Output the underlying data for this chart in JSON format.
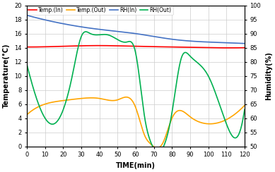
{
  "temp_in_x": [
    0,
    20,
    40,
    60,
    80,
    100,
    120
  ],
  "temp_in_y": [
    14.1,
    14.2,
    14.3,
    14.2,
    14.1,
    14.0,
    14.0
  ],
  "temp_out_x": [
    0,
    10,
    20,
    30,
    40,
    50,
    60,
    65,
    68,
    75,
    80,
    90,
    100,
    110,
    120
  ],
  "temp_out_y": [
    4.5,
    6.0,
    6.5,
    6.8,
    6.8,
    6.6,
    5.5,
    1.5,
    0.4,
    0.5,
    4.0,
    4.2,
    3.2,
    3.8,
    5.8
  ],
  "rh_in_x": [
    0,
    20,
    40,
    60,
    80,
    100,
    120
  ],
  "rh_in_y": [
    96.5,
    93.5,
    91.5,
    90.0,
    88.0,
    87.0,
    86.5
  ],
  "rh_out_x": [
    0,
    10,
    15,
    25,
    30,
    35,
    45,
    55,
    60,
    65,
    68,
    80,
    85,
    90,
    100,
    110,
    115,
    120
  ],
  "rh_out_y": [
    79,
    60,
    58,
    75,
    89,
    90,
    89.5,
    87,
    83,
    60,
    52,
    62,
    81,
    82,
    75,
    58,
    53,
    63
  ],
  "temp_in_color": "#FF0000",
  "temp_out_color": "#FFA500",
  "rh_in_color": "#4472C4",
  "rh_out_color": "#00B050",
  "xlim": [
    0,
    120
  ],
  "ylim_left": [
    0,
    20
  ],
  "ylim_right": [
    50,
    100
  ],
  "yticks_left": [
    0,
    2,
    4,
    6,
    8,
    10,
    12,
    14,
    16,
    18,
    20
  ],
  "yticks_right": [
    50,
    55,
    60,
    65,
    70,
    75,
    80,
    85,
    90,
    95,
    100
  ],
  "xticks": [
    0,
    10,
    20,
    30,
    40,
    50,
    60,
    70,
    80,
    90,
    100,
    110,
    120
  ],
  "xlabel": "TIME(min)",
  "ylabel_left": "Temperature(°C)",
  "ylabel_right": "Humidity(%)",
  "legend_labels": [
    "Temp.(In)",
    "Temp.(Out)",
    "RH(In)",
    "RH(Out)"
  ],
  "bg_color": "#FFFFFF",
  "grid_color": "#CCCCCC"
}
